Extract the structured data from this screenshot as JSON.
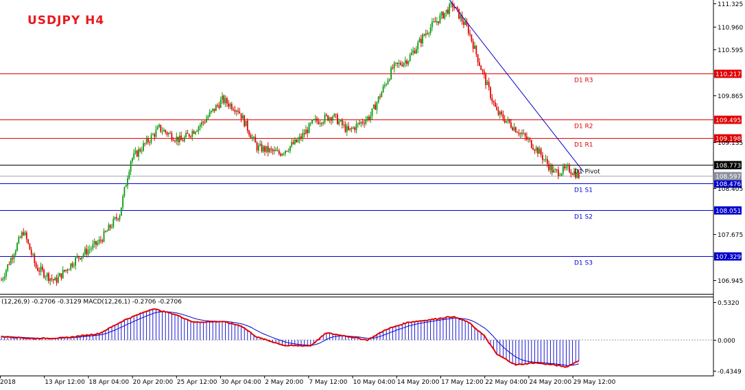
{
  "title": "USDJPY  H4",
  "colors": {
    "bull": "#0a9a0a",
    "bear": "#e00000",
    "resistance": "#e00000",
    "support": "#0000cc",
    "pivot": "#000000",
    "trendline": "#0000cc",
    "macd_hist": "#0000cc",
    "macd_signal": "#e00000",
    "macd_line": "#0000cc"
  },
  "price_axis": {
    "ticks": [
      "111.325",
      "110.960",
      "110.595",
      "109.865",
      "109.135",
      "108.405",
      "107.675",
      "106.945"
    ],
    "ylim": [
      106.73,
      111.38
    ]
  },
  "time_axis": {
    "labels": [
      "2018",
      "13 Apr 12:00",
      "18 Apr 04:00",
      "20 Apr 20:00",
      "25 Apr 12:00",
      "30 Apr 04:00",
      "2 May 20:00",
      "7 May 12:00",
      "10 May 04:00",
      "14 May 20:00",
      "17 May 12:00",
      "22 May 04:00",
      "24 May 20:00",
      "29 May 12:00"
    ]
  },
  "levels": [
    {
      "name": "D1 R3",
      "value": "110.217",
      "kind": "resistance"
    },
    {
      "name": "D1 R2",
      "value": "109.495",
      "kind": "resistance"
    },
    {
      "name": "D1 R1",
      "value": "109.198",
      "kind": "resistance"
    },
    {
      "name": "D1 Pivot",
      "value": "108.773",
      "kind": "pivot"
    },
    {
      "name": "D1 S1",
      "value": "108.476",
      "kind": "support"
    },
    {
      "name": "D1 S2",
      "value": "108.051",
      "kind": "support"
    },
    {
      "name": "D1 S3",
      "value": "107.329",
      "kind": "support"
    }
  ],
  "current_price": "108.597",
  "macd": {
    "caption": "(12,26,9) -0.2706 -0.3129 MACD(12,26,1) -0.2706 -0.2706",
    "ticks": [
      "0.5320",
      "0.000",
      "-0.4349"
    ],
    "ylim": [
      -0.5,
      0.6
    ]
  },
  "chart_data": {
    "type": "candlestick",
    "title": "USDJPY  H4",
    "price_keypoints": [
      [
        0,
        106.95
      ],
      [
        8,
        107.4
      ],
      [
        14,
        107.72
      ],
      [
        22,
        107.15
      ],
      [
        34,
        106.93
      ],
      [
        48,
        107.3
      ],
      [
        62,
        107.55
      ],
      [
        75,
        108.0
      ],
      [
        82,
        108.85
      ],
      [
        100,
        109.35
      ],
      [
        114,
        109.15
      ],
      [
        128,
        109.45
      ],
      [
        140,
        109.8
      ],
      [
        150,
        109.65
      ],
      [
        162,
        109.05
      ],
      [
        176,
        108.95
      ],
      [
        188,
        109.15
      ],
      [
        198,
        109.45
      ],
      [
        210,
        109.55
      ],
      [
        220,
        109.3
      ],
      [
        234,
        109.55
      ],
      [
        248,
        110.3
      ],
      [
        258,
        110.45
      ],
      [
        270,
        110.9
      ],
      [
        286,
        111.3
      ],
      [
        296,
        110.9
      ],
      [
        304,
        110.3
      ],
      [
        314,
        109.6
      ],
      [
        328,
        109.3
      ],
      [
        340,
        109.0
      ],
      [
        350,
        108.65
      ],
      [
        360,
        108.7
      ],
      [
        366,
        108.6
      ]
    ],
    "macd_keypoints": [
      [
        0,
        0.05
      ],
      [
        20,
        0.02
      ],
      [
        40,
        0.03
      ],
      [
        62,
        0.09
      ],
      [
        78,
        0.28
      ],
      [
        96,
        0.44
      ],
      [
        110,
        0.36
      ],
      [
        122,
        0.25
      ],
      [
        140,
        0.26
      ],
      [
        152,
        0.2
      ],
      [
        162,
        0.04
      ],
      [
        180,
        -0.08
      ],
      [
        196,
        -0.08
      ],
      [
        206,
        0.1
      ],
      [
        220,
        0.05
      ],
      [
        232,
        0.0
      ],
      [
        244,
        0.15
      ],
      [
        258,
        0.25
      ],
      [
        270,
        0.28
      ],
      [
        286,
        0.33
      ],
      [
        296,
        0.25
      ],
      [
        306,
        0.06
      ],
      [
        314,
        -0.2
      ],
      [
        326,
        -0.35
      ],
      [
        338,
        -0.32
      ],
      [
        350,
        -0.35
      ],
      [
        358,
        -0.38
      ],
      [
        366,
        -0.29
      ]
    ]
  }
}
